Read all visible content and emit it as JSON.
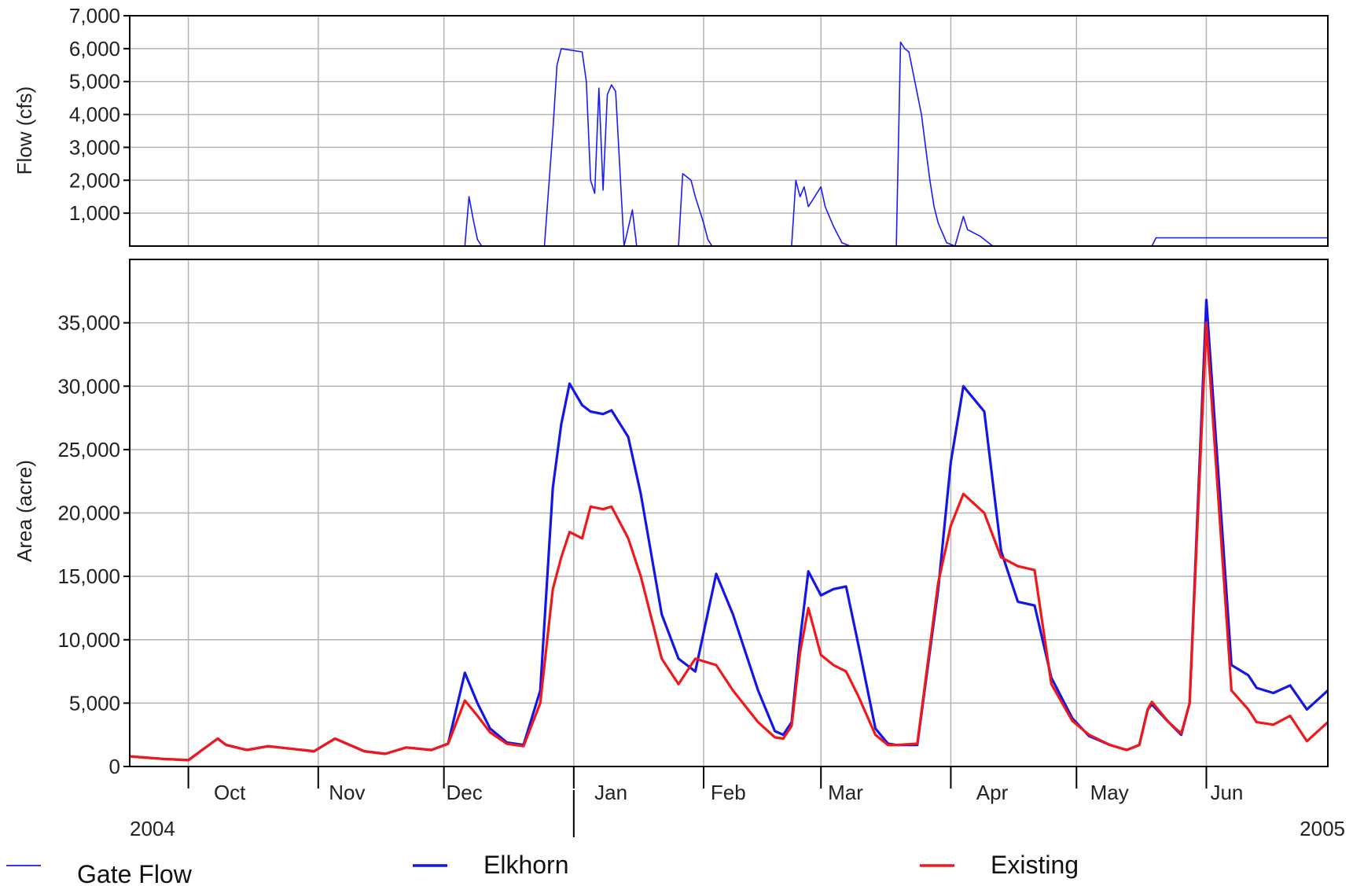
{
  "chart_data": [
    {
      "type": "line",
      "panel": "top",
      "xlabel": "",
      "ylabel": "Flow (cfs)",
      "ylim": [
        0,
        7000
      ],
      "yticks": [
        1000,
        2000,
        3000,
        4000,
        5000,
        6000,
        7000
      ],
      "ytick_labels": [
        "1,000",
        "2,000",
        "3,000",
        "4,000",
        "5,000",
        "6,000",
        "7,000"
      ],
      "grid": true,
      "series": [
        {
          "name": "Gate Flow",
          "color": "#1a1aff",
          "x": [
            "2004-10-01",
            "2004-12-06",
            "2004-12-07",
            "2004-12-08",
            "2004-12-09",
            "2004-12-10",
            "2004-12-25",
            "2004-12-27",
            "2004-12-28",
            "2004-12-29",
            "2005-01-03",
            "2005-01-04",
            "2005-01-05",
            "2005-01-06",
            "2005-01-07",
            "2005-01-08",
            "2005-01-09",
            "2005-01-10",
            "2005-01-11",
            "2005-01-13",
            "2005-01-15",
            "2005-01-16",
            "2005-01-16",
            "2005-01-17",
            "2005-01-18",
            "2005-01-18",
            "2005-01-26",
            "2005-01-27",
            "2005-01-29",
            "2005-01-30",
            "2005-02-01",
            "2005-02-02",
            "2005-02-03",
            "2005-02-04",
            "2005-02-22",
            "2005-02-23",
            "2005-02-24",
            "2005-02-25",
            "2005-02-26",
            "2005-02-27",
            "2005-02-28",
            "2005-03-01",
            "2005-03-02",
            "2005-03-04",
            "2005-03-06",
            "2005-03-08",
            "2005-03-10",
            "2005-03-12",
            "2005-03-15",
            "2005-03-19",
            "2005-03-20",
            "2005-03-21",
            "2005-03-22",
            "2005-03-25",
            "2005-03-26",
            "2005-03-27",
            "2005-03-28",
            "2005-03-29",
            "2005-03-31",
            "2005-04-02",
            "2005-04-04",
            "2005-04-05",
            "2005-04-08",
            "2005-04-10",
            "2005-04-11",
            "2005-04-13",
            "2005-04-14",
            "2005-04-15",
            "2005-05-19",
            "2005-05-20",
            "2005-06-30"
          ],
          "values": [
            0,
            0,
            1500,
            800,
            200,
            0,
            0,
            3500,
            5500,
            6000,
            5900,
            5000,
            2000,
            1600,
            4800,
            1700,
            4600,
            4900,
            4700,
            0,
            1100,
            0,
            0,
            0,
            0,
            0,
            0,
            2200,
            2000,
            1500,
            700,
            200,
            0,
            0,
            0,
            2000,
            1500,
            1800,
            1200,
            1400,
            1600,
            1800,
            1200,
            600,
            100,
            0,
            0,
            0,
            0,
            0,
            6200,
            6000,
            5900,
            4000,
            3000,
            2000,
            1200,
            700,
            100,
            0,
            900,
            500,
            300,
            100,
            0,
            0,
            0,
            0,
            0,
            250,
            250
          ]
        }
      ]
    },
    {
      "type": "line",
      "panel": "bottom",
      "xlabel": "",
      "ylabel": "Area (acre)",
      "ylim": [
        0,
        40000
      ],
      "yticks": [
        0,
        5000,
        10000,
        15000,
        20000,
        25000,
        30000,
        35000
      ],
      "ytick_labels": [
        "0",
        "5,000",
        "10,000",
        "15,000",
        "20,000",
        "25,000",
        "30,000",
        "35,000"
      ],
      "xlim": [
        "2004-09-17",
        "2005-06-30"
      ],
      "month_labels": [
        "Oct",
        "Nov",
        "Dec",
        "Jan",
        "Feb",
        "Mar",
        "Apr",
        "May",
        "Jun"
      ],
      "year_labels": [
        "2004",
        "2005"
      ],
      "grid": true,
      "series": [
        {
          "name": "Elkhorn",
          "color": "#1515e8",
          "x": [
            "2004-09-17",
            "2004-09-25",
            "2004-10-01",
            "2004-10-08",
            "2004-10-10",
            "2004-10-15",
            "2004-10-20",
            "2004-10-31",
            "2004-11-05",
            "2004-11-12",
            "2004-11-17",
            "2004-11-22",
            "2004-11-28",
            "2004-12-02",
            "2004-12-06",
            "2004-12-09",
            "2004-12-12",
            "2004-12-16",
            "2004-12-20",
            "2004-12-24",
            "2004-12-27",
            "2004-12-29",
            "2004-12-31",
            "2005-01-03",
            "2005-01-05",
            "2005-01-08",
            "2005-01-10",
            "2005-01-14",
            "2005-01-17",
            "2005-01-22",
            "2005-01-26",
            "2005-01-30",
            "2005-02-04",
            "2005-02-08",
            "2005-02-14",
            "2005-02-18",
            "2005-02-20",
            "2005-02-22",
            "2005-02-24",
            "2005-02-26",
            "2005-03-01",
            "2005-03-04",
            "2005-03-07",
            "2005-03-10",
            "2005-03-14",
            "2005-03-17",
            "2005-03-19",
            "2005-03-24",
            "2005-03-29",
            "2005-04-01",
            "2005-04-04",
            "2005-04-09",
            "2005-04-13",
            "2005-04-17",
            "2005-04-21",
            "2005-04-25",
            "2005-04-30",
            "2005-05-04",
            "2005-05-09",
            "2005-05-13",
            "2005-05-16",
            "2005-05-18",
            "2005-05-19",
            "2005-05-23",
            "2005-05-26",
            "2005-05-28",
            "2005-06-01",
            "2005-06-07",
            "2005-06-11",
            "2005-06-13",
            "2005-06-17",
            "2005-06-21",
            "2005-06-25",
            "2005-06-30"
          ],
          "values": [
            800,
            600,
            500,
            2200,
            1700,
            1300,
            1600,
            1200,
            2200,
            1200,
            1000,
            1500,
            1300,
            1800,
            7400,
            5000,
            3000,
            1900,
            1700,
            6000,
            22000,
            27000,
            30200,
            28500,
            28000,
            27800,
            28100,
            26000,
            21500,
            12000,
            8500,
            7500,
            15200,
            12000,
            6000,
            2800,
            2500,
            3500,
            10000,
            15400,
            13500,
            14000,
            14200,
            9500,
            3000,
            1800,
            1700,
            1700,
            14000,
            24000,
            30000,
            28000,
            17000,
            13000,
            12700,
            7000,
            3800,
            2400,
            1700,
            1300,
            1700,
            4500,
            4900,
            3500,
            2500,
            5000,
            36800,
            8000,
            7200,
            6200,
            5800,
            6400,
            4500,
            6000
          ]
        },
        {
          "name": "Existing",
          "color": "#f01818",
          "x": [
            "2004-09-17",
            "2004-09-25",
            "2004-10-01",
            "2004-10-08",
            "2004-10-10",
            "2004-10-15",
            "2004-10-20",
            "2004-10-31",
            "2004-11-05",
            "2004-11-12",
            "2004-11-17",
            "2004-11-22",
            "2004-11-28",
            "2004-12-02",
            "2004-12-06",
            "2004-12-09",
            "2004-12-12",
            "2004-12-16",
            "2004-12-20",
            "2004-12-24",
            "2004-12-27",
            "2004-12-29",
            "2004-12-31",
            "2005-01-03",
            "2005-01-05",
            "2005-01-08",
            "2005-01-10",
            "2005-01-14",
            "2005-01-17",
            "2005-01-22",
            "2005-01-26",
            "2005-01-30",
            "2005-02-04",
            "2005-02-08",
            "2005-02-14",
            "2005-02-18",
            "2005-02-20",
            "2005-02-22",
            "2005-02-24",
            "2005-02-26",
            "2005-03-01",
            "2005-03-04",
            "2005-03-07",
            "2005-03-10",
            "2005-03-14",
            "2005-03-17",
            "2005-03-19",
            "2005-03-24",
            "2005-03-29",
            "2005-04-01",
            "2005-04-04",
            "2005-04-09",
            "2005-04-13",
            "2005-04-17",
            "2005-04-21",
            "2005-04-25",
            "2005-04-30",
            "2005-05-04",
            "2005-05-09",
            "2005-05-13",
            "2005-05-16",
            "2005-05-18",
            "2005-05-19",
            "2005-05-23",
            "2005-05-26",
            "2005-05-28",
            "2005-06-01",
            "2005-06-07",
            "2005-06-11",
            "2005-06-13",
            "2005-06-17",
            "2005-06-21",
            "2005-06-25",
            "2005-06-30"
          ],
          "values": [
            800,
            600,
            500,
            2200,
            1700,
            1300,
            1600,
            1200,
            2200,
            1200,
            1000,
            1500,
            1300,
            1800,
            5200,
            4000,
            2700,
            1800,
            1600,
            5000,
            14000,
            16500,
            18500,
            18000,
            20500,
            20300,
            20500,
            18000,
            15000,
            8500,
            6500,
            8500,
            8000,
            6000,
            3500,
            2300,
            2200,
            3200,
            9000,
            12500,
            8800,
            8000,
            7500,
            5500,
            2500,
            1700,
            1700,
            1800,
            14500,
            19000,
            21500,
            20000,
            16500,
            15800,
            15500,
            6500,
            3600,
            2500,
            1700,
            1300,
            1700,
            4500,
            5100,
            3500,
            2600,
            5000,
            35000,
            6000,
            4500,
            3500,
            3300,
            4000,
            2000,
            3500
          ]
        }
      ]
    }
  ],
  "legend": [
    {
      "label": "Gate Flow",
      "color": "#1a1aff",
      "weight": "thin"
    },
    {
      "label": "Elkhorn",
      "color": "#1515e8",
      "weight": "thick"
    },
    {
      "label": "Existing",
      "color": "#f01818",
      "weight": "thick"
    }
  ]
}
